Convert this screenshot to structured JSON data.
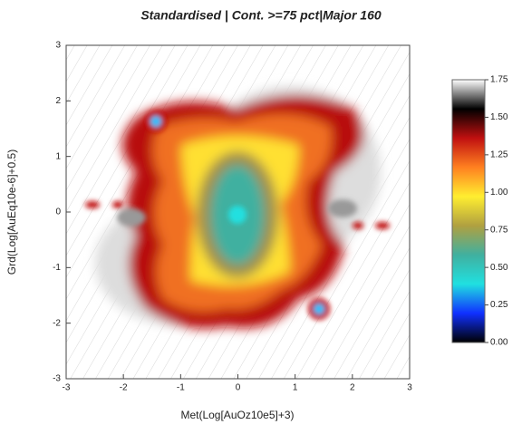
{
  "chart_data": {
    "type": "heatmap",
    "title": "Standardised | Cont. >=75 pct|Major 160",
    "x_label": "Met(Log[AuOz10e5]+3)",
    "y_label": "Grd(Log[AuEq10e-6]+0.5)",
    "xlim": [
      -3,
      3
    ],
    "xticks": [
      -3,
      -2,
      -1,
      0,
      1,
      2,
      3
    ],
    "ylim": [
      -3,
      3
    ],
    "yticks": [
      -3,
      -2,
      -1,
      0,
      1,
      2,
      3
    ],
    "colorbar": {
      "lim": [
        0,
        1.75
      ],
      "ticks": [
        {
          "value": 0,
          "label": "0.00"
        },
        0.25,
        {
          "value": 0.5,
          "label": "0.50"
        },
        0.75,
        {
          "value": 1,
          "label": "1.00"
        },
        1.25,
        {
          "value": 1.5,
          "label": "1.50"
        },
        1.75
      ],
      "colors": [
        "#000000",
        "#1030ff",
        "#20e0e0",
        "#40b0a0",
        "#b0a040",
        "#ffee30",
        "#ff8020",
        "#c01010",
        "#000000",
        "#ffffff"
      ]
    }
  }
}
